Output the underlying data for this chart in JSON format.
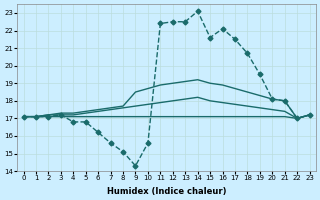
{
  "xlabel": "Humidex (Indice chaleur)",
  "ylabel": "",
  "background_color": "#cceeff",
  "grid_color": "#bbdddd",
  "line_color": "#1a6b6b",
  "xlim": [
    -0.5,
    23.5
  ],
  "ylim": [
    14,
    23.5
  ],
  "yticks": [
    14,
    15,
    16,
    17,
    18,
    19,
    20,
    21,
    22,
    23
  ],
  "xticks": [
    0,
    1,
    2,
    3,
    4,
    5,
    6,
    7,
    8,
    9,
    10,
    11,
    12,
    13,
    14,
    15,
    16,
    17,
    18,
    19,
    20,
    21,
    22,
    23
  ],
  "series": [
    {
      "x": [
        0,
        1,
        2,
        3,
        4,
        5,
        6,
        7,
        8,
        9,
        10,
        11,
        12,
        13,
        14,
        15,
        16,
        17,
        18,
        19,
        20,
        21,
        22,
        23
      ],
      "y": [
        17.1,
        17.1,
        17.1,
        17.2,
        16.8,
        16.8,
        16.2,
        15.6,
        15.1,
        14.3,
        15.6,
        22.4,
        22.5,
        22.5,
        23.1,
        21.6,
        22.1,
        21.5,
        20.7,
        19.5,
        18.1,
        18.0,
        17.0,
        17.2
      ],
      "marker": "D",
      "markersize": 2.5,
      "linewidth": 1.0,
      "linestyle": "--"
    },
    {
      "x": [
        0,
        1,
        2,
        3,
        4,
        5,
        6,
        7,
        8,
        9,
        10,
        11,
        12,
        13,
        14,
        15,
        16,
        17,
        18,
        19,
        20,
        21,
        22,
        23
      ],
      "y": [
        17.1,
        17.1,
        17.2,
        17.3,
        17.3,
        17.4,
        17.5,
        17.6,
        17.7,
        18.5,
        18.7,
        18.9,
        19.0,
        19.1,
        19.2,
        19.0,
        18.9,
        18.7,
        18.5,
        18.3,
        18.1,
        18.0,
        17.0,
        17.2
      ],
      "marker": null,
      "markersize": 0,
      "linewidth": 1.0,
      "linestyle": "-"
    },
    {
      "x": [
        0,
        1,
        2,
        3,
        4,
        5,
        6,
        7,
        8,
        9,
        10,
        11,
        12,
        13,
        14,
        15,
        16,
        17,
        18,
        19,
        20,
        21,
        22,
        23
      ],
      "y": [
        17.1,
        17.1,
        17.2,
        17.2,
        17.2,
        17.3,
        17.4,
        17.5,
        17.6,
        17.7,
        17.8,
        17.9,
        18.0,
        18.1,
        18.2,
        18.0,
        17.9,
        17.8,
        17.7,
        17.6,
        17.5,
        17.4,
        17.0,
        17.2
      ],
      "marker": null,
      "markersize": 0,
      "linewidth": 1.0,
      "linestyle": "-"
    },
    {
      "x": [
        0,
        1,
        2,
        3,
        4,
        5,
        6,
        7,
        8,
        9,
        10,
        11,
        12,
        13,
        14,
        15,
        16,
        17,
        18,
        19,
        20,
        21,
        22,
        23
      ],
      "y": [
        17.1,
        17.1,
        17.1,
        17.1,
        17.1,
        17.1,
        17.1,
        17.1,
        17.1,
        17.1,
        17.1,
        17.1,
        17.1,
        17.1,
        17.1,
        17.1,
        17.1,
        17.1,
        17.1,
        17.1,
        17.1,
        17.1,
        17.0,
        17.2
      ],
      "marker": null,
      "markersize": 0,
      "linewidth": 1.0,
      "linestyle": "-"
    }
  ]
}
